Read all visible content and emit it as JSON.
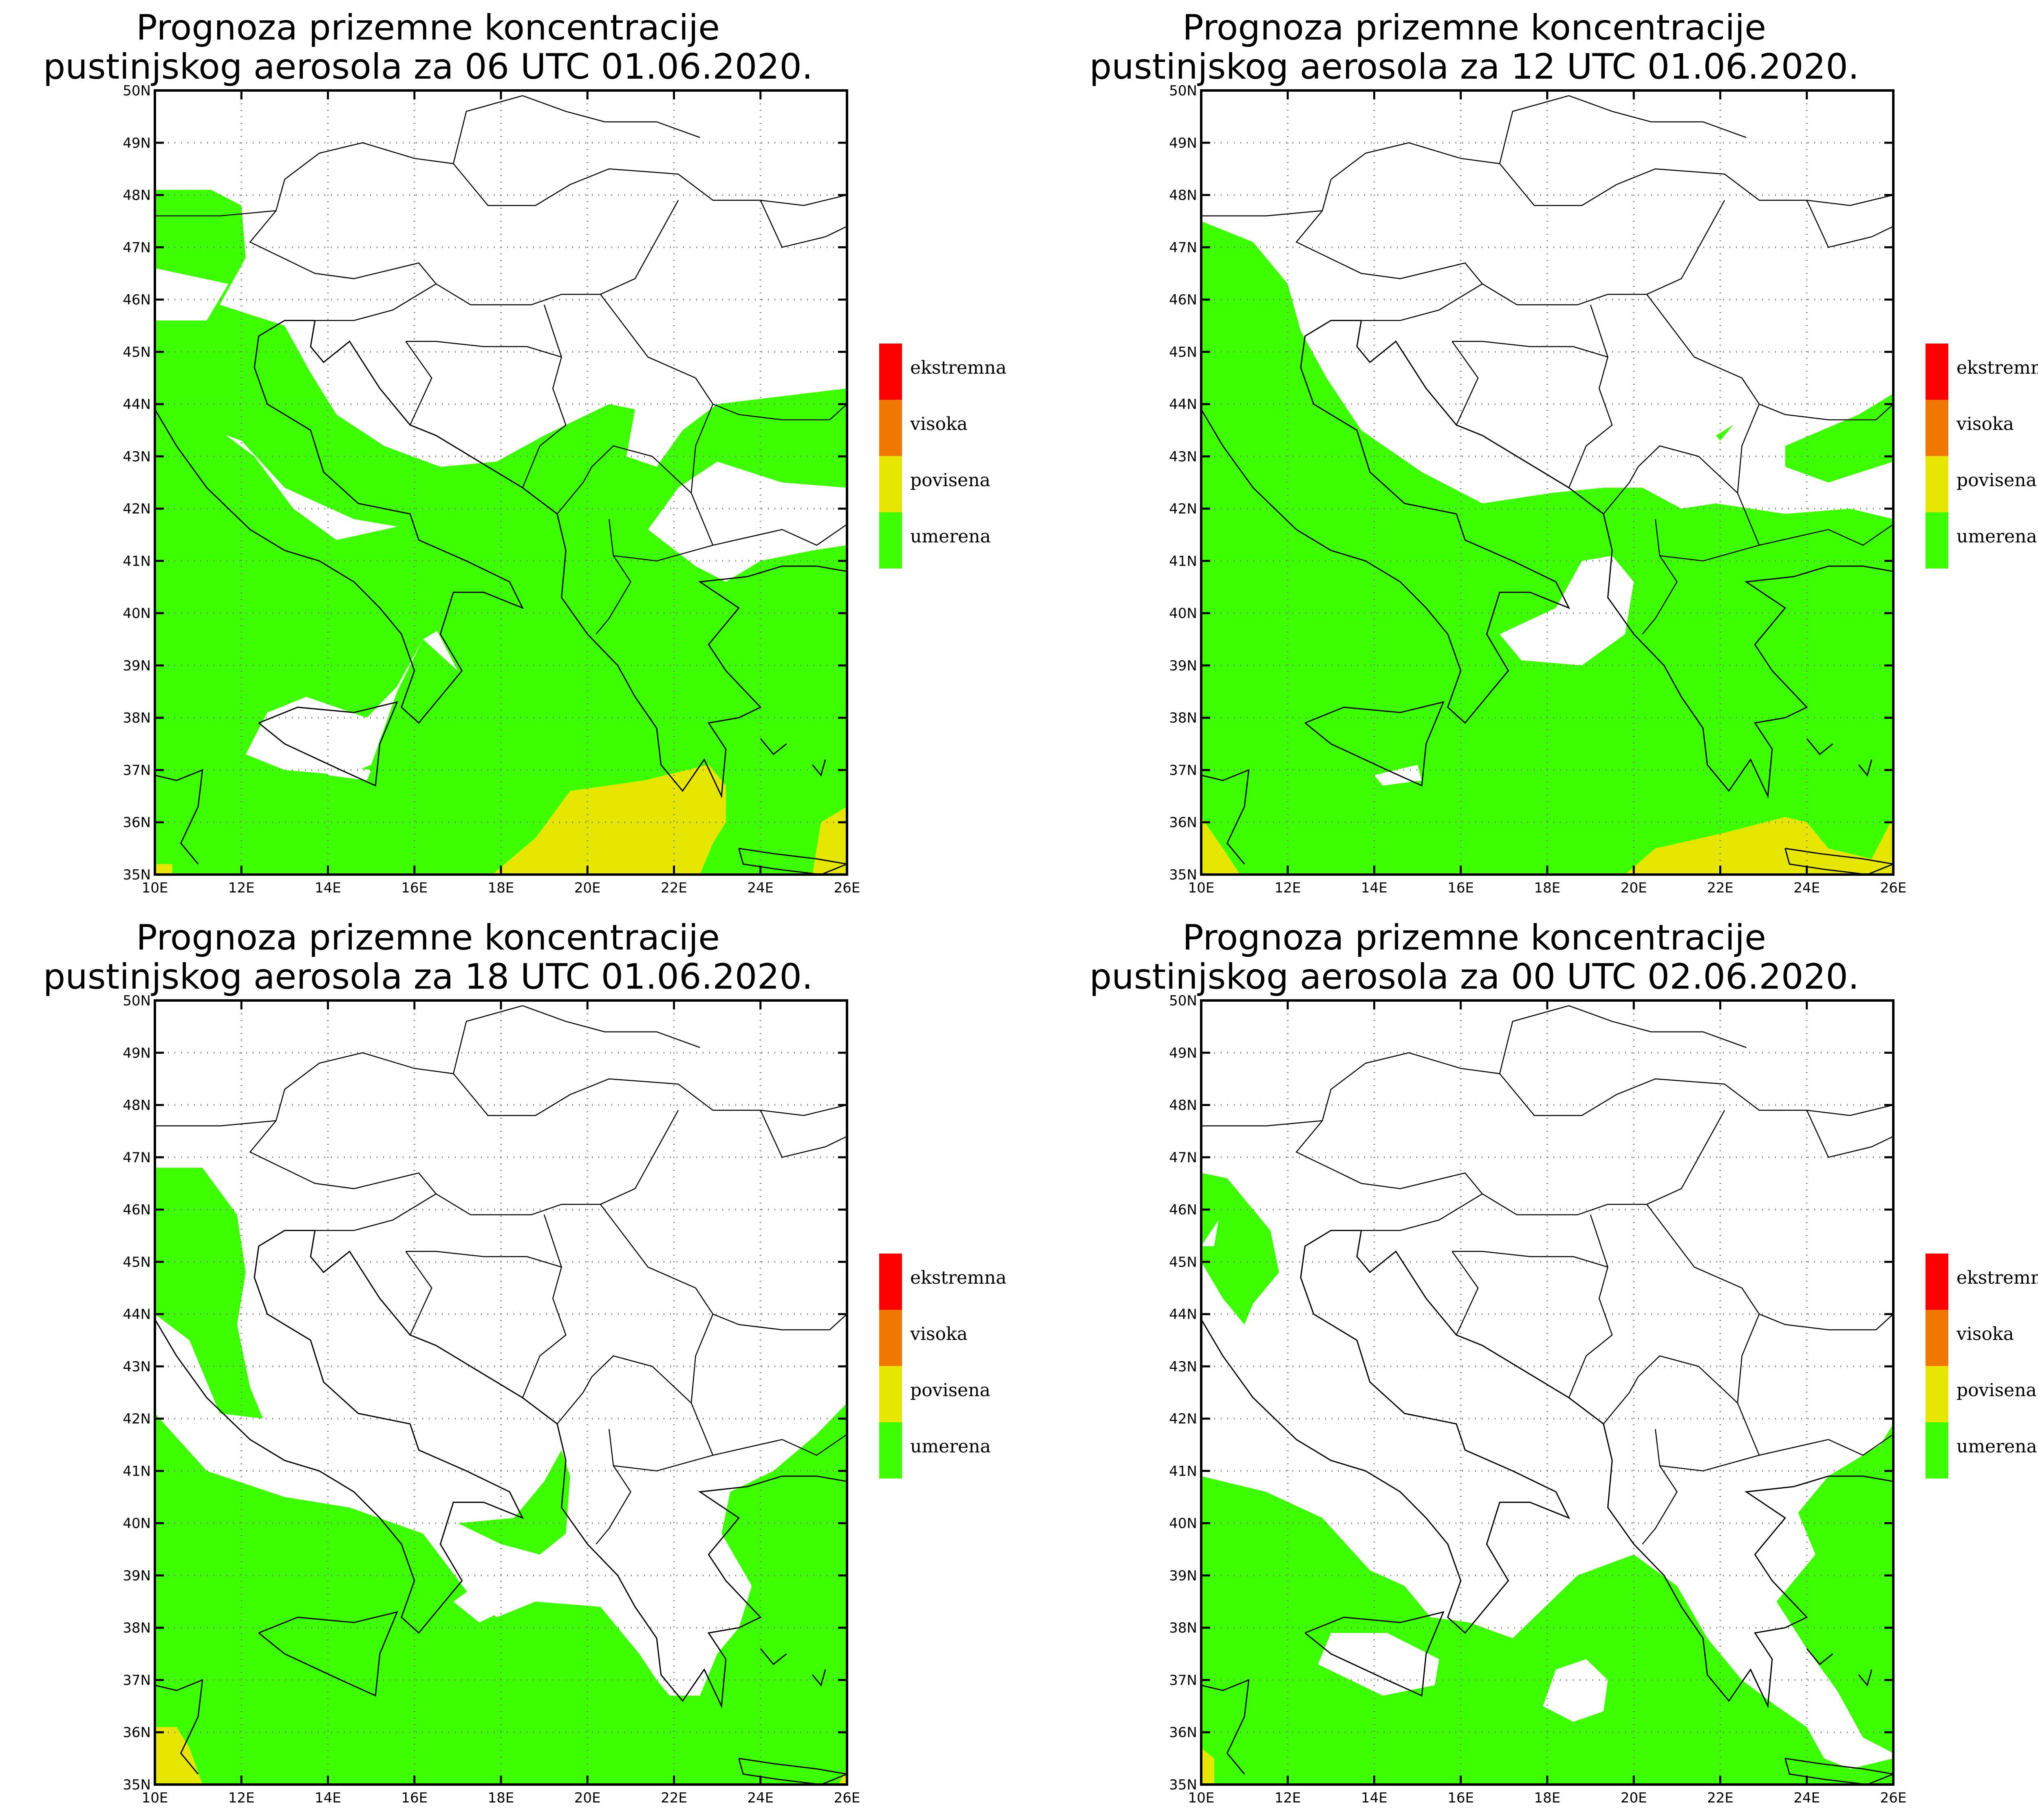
{
  "panels": [
    {
      "title_line1": "Prognoza prizemne koncentracije",
      "title_line2": "pustinjskog aerosola za 06 UTC 01.06.2020."
    },
    {
      "title_line1": "Prognoza prizemne koncentracije",
      "title_line2": "pustinjskog aerosola za 12 UTC 01.06.2020."
    },
    {
      "title_line1": "Prognoza prizemne koncentracije",
      "title_line2": "pustinjskog aerosola za 18 UTC 01.06.2020."
    },
    {
      "title_line1": "Prognoza prizemne koncentracije",
      "title_line2": "pustinjskog aerosola za 00 UTC 02.06.2020."
    }
  ],
  "lat_labels": [
    "35N",
    "36N",
    "37N",
    "38N",
    "39N",
    "40N",
    "41N",
    "42N",
    "43N",
    "44N",
    "45N",
    "46N",
    "47N",
    "48N",
    "49N",
    "50N"
  ],
  "lon_labels": [
    "10E",
    "12E",
    "14E",
    "16E",
    "18E",
    "20E",
    "22E",
    "24E",
    "26E"
  ],
  "legend": [
    {
      "label": "ekstremna",
      "color": "#ff0000"
    },
    {
      "label": "visoka",
      "color": "#f07800"
    },
    {
      "label": "povisena",
      "color": "#e6e600"
    },
    {
      "label": "umerena",
      "color": "#3cff00"
    }
  ],
  "colors": {
    "umerena": "#3cff00",
    "povisena": "#e6e600",
    "grid": "#777777",
    "frame": "#000000"
  }
}
